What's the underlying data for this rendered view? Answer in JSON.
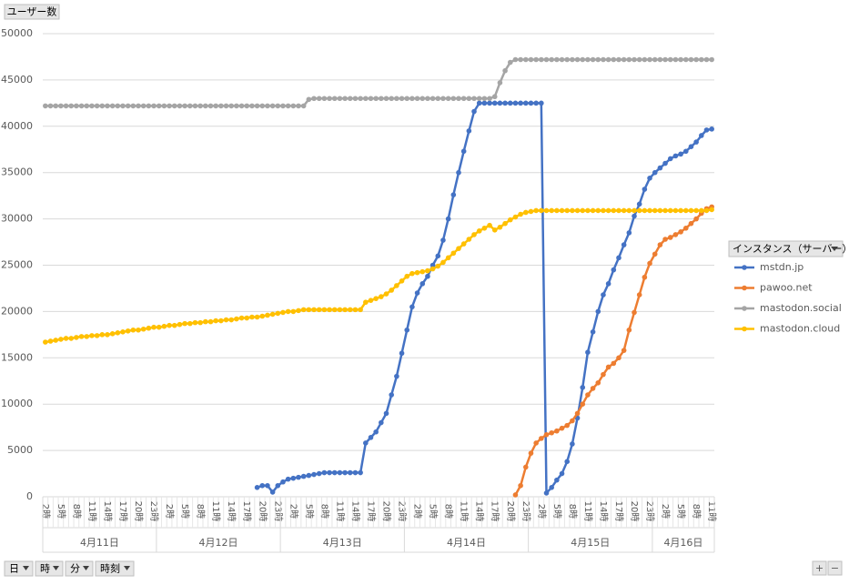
{
  "chart_data": {
    "type": "line",
    "y_field": "ユーザー数",
    "axis_fields": [
      "日",
      "時",
      "分",
      "時刻"
    ],
    "legend_title": "インスタンス（サーバー）",
    "zoom_buttons": [
      "+",
      "−"
    ],
    "legend_position": "right",
    "grid": true,
    "ylim": [
      0,
      50000
    ],
    "yticks": [
      0,
      5000,
      10000,
      15000,
      20000,
      25000,
      30000,
      35000,
      40000,
      45000,
      50000
    ],
    "days": [
      "4月11日",
      "4月12日",
      "4月13日",
      "4月14日",
      "4月15日",
      "4月16日"
    ],
    "day_hours": [
      22,
      24,
      24,
      24,
      24,
      12
    ],
    "categories": [
      "2時",
      null,
      null,
      "5時",
      null,
      null,
      "8時",
      null,
      null,
      "11時",
      null,
      null,
      "14時",
      null,
      null,
      "17時",
      null,
      null,
      "20時",
      null,
      null,
      "23時",
      null,
      null,
      "2時",
      null,
      null,
      "5時",
      null,
      null,
      "8時",
      null,
      null,
      "11時",
      null,
      null,
      "14時",
      null,
      null,
      "17時",
      null,
      null,
      "20時",
      null,
      null,
      "23時",
      null,
      null,
      "2時",
      null,
      null,
      "5時",
      null,
      null,
      "8時",
      null,
      null,
      "11時",
      null,
      null,
      "14時",
      null,
      null,
      "17時",
      null,
      null,
      "20時",
      null,
      null,
      "23時",
      null,
      null,
      "2時",
      null,
      null,
      "5時",
      null,
      null,
      "8時",
      null,
      null,
      "11時",
      null,
      null,
      "14時",
      null,
      null,
      "17時",
      null,
      null,
      "20時",
      null,
      null,
      "23時",
      null,
      null,
      "2時",
      null,
      null,
      "5時",
      null,
      null,
      "8時",
      null,
      null,
      "11時",
      null,
      null,
      "14時",
      null,
      null,
      "17時",
      null,
      null,
      "20時",
      null,
      null,
      "23時",
      null,
      null,
      "2時",
      null,
      null,
      "5時",
      null,
      null,
      "8時",
      null,
      null,
      "11時"
    ],
    "series": [
      {
        "name": "mstdn.jp",
        "color": "#4472c4",
        "values": [
          null,
          null,
          null,
          null,
          null,
          null,
          null,
          null,
          null,
          null,
          null,
          null,
          null,
          null,
          null,
          null,
          null,
          null,
          null,
          null,
          null,
          null,
          null,
          null,
          null,
          null,
          null,
          null,
          null,
          null,
          null,
          null,
          null,
          null,
          null,
          null,
          null,
          null,
          null,
          null,
          null,
          1000,
          1200,
          1200,
          500,
          1200,
          1600,
          1900,
          2000,
          2100,
          2200,
          2300,
          2400,
          2500,
          2600,
          2600,
          2600,
          2600,
          2600,
          2600,
          2600,
          2600,
          5800,
          6400,
          7000,
          8000,
          9000,
          11000,
          13000,
          15500,
          18000,
          20500,
          22000,
          23000,
          23800,
          25000,
          26000,
          27700,
          30000,
          32600,
          35000,
          37300,
          39500,
          41600,
          42500,
          42500,
          42500,
          42500,
          42500,
          42500,
          42500,
          42500,
          42500,
          42500,
          42500,
          42500,
          42500,
          400,
          1000,
          1800,
          2500,
          3800,
          5700,
          8500,
          11800,
          15600,
          17800,
          20000,
          21800,
          23000,
          24500,
          25800,
          27200,
          28500,
          30300,
          31600,
          33200,
          34400,
          35000,
          35500,
          36000,
          36500,
          36800,
          37000,
          37300,
          37800,
          38300,
          39000,
          39600,
          39700
        ]
      },
      {
        "name": "pawoo.net",
        "color": "#ed7d31",
        "values": [
          null,
          null,
          null,
          null,
          null,
          null,
          null,
          null,
          null,
          null,
          null,
          null,
          null,
          null,
          null,
          null,
          null,
          null,
          null,
          null,
          null,
          null,
          null,
          null,
          null,
          null,
          null,
          null,
          null,
          null,
          null,
          null,
          null,
          null,
          null,
          null,
          null,
          null,
          null,
          null,
          null,
          null,
          null,
          null,
          null,
          null,
          null,
          null,
          null,
          null,
          null,
          null,
          null,
          null,
          null,
          null,
          null,
          null,
          null,
          null,
          null,
          null,
          null,
          null,
          null,
          null,
          null,
          null,
          null,
          null,
          null,
          null,
          null,
          null,
          null,
          null,
          null,
          null,
          null,
          null,
          null,
          null,
          null,
          null,
          null,
          null,
          null,
          null,
          null,
          null,
          null,
          200,
          1200,
          3200,
          4700,
          5800,
          6300,
          6700,
          6900,
          7100,
          7400,
          7700,
          8200,
          9000,
          10000,
          11000,
          11700,
          12300,
          13200,
          14000,
          14400,
          15000,
          15800,
          18000,
          19900,
          21800,
          23700,
          25200,
          26200,
          27200,
          27800,
          28000,
          28300,
          28600,
          29000,
          29500,
          30000,
          30600,
          31100,
          31300
        ]
      },
      {
        "name": "mastodon.social",
        "color": "#a5a5a5",
        "values": [
          42200,
          42200,
          42200,
          42200,
          42200,
          42200,
          42200,
          42200,
          42200,
          42200,
          42200,
          42200,
          42200,
          42200,
          42200,
          42200,
          42200,
          42200,
          42200,
          42200,
          42200,
          42200,
          42200,
          42200,
          42200,
          42200,
          42200,
          42200,
          42200,
          42200,
          42200,
          42200,
          42200,
          42200,
          42200,
          42200,
          42200,
          42200,
          42200,
          42200,
          42200,
          42200,
          42200,
          42200,
          42200,
          42200,
          42200,
          42200,
          42200,
          42200,
          42200,
          42900,
          43000,
          43000,
          43000,
          43000,
          43000,
          43000,
          43000,
          43000,
          43000,
          43000,
          43000,
          43000,
          43000,
          43000,
          43000,
          43000,
          43000,
          43000,
          43000,
          43000,
          43000,
          43000,
          43000,
          43000,
          43000,
          43000,
          43000,
          43000,
          43000,
          43000,
          43000,
          43000,
          43000,
          43000,
          43000,
          43200,
          44700,
          46000,
          46900,
          47200,
          47200,
          47200,
          47200,
          47200,
          47200,
          47200,
          47200,
          47200,
          47200,
          47200,
          47200,
          47200,
          47200,
          47200,
          47200,
          47200,
          47200,
          47200,
          47200,
          47200,
          47200,
          47200,
          47200,
          47200,
          47200,
          47200,
          47200,
          47200,
          47200,
          47200,
          47200,
          47200,
          47200,
          47200,
          47200,
          47200,
          47200,
          47200
        ]
      },
      {
        "name": "mastodon.cloud",
        "color": "#ffc000",
        "values": [
          16700,
          16800,
          16900,
          17000,
          17100,
          17100,
          17200,
          17300,
          17300,
          17400,
          17400,
          17500,
          17500,
          17600,
          17700,
          17800,
          17900,
          18000,
          18000,
          18100,
          18200,
          18300,
          18300,
          18400,
          18500,
          18500,
          18600,
          18700,
          18700,
          18800,
          18800,
          18900,
          18900,
          19000,
          19000,
          19100,
          19100,
          19200,
          19300,
          19300,
          19400,
          19400,
          19500,
          19600,
          19700,
          19800,
          19900,
          20000,
          20000,
          20100,
          20200,
          20200,
          20200,
          20200,
          20200,
          20200,
          20200,
          20200,
          20200,
          20200,
          20200,
          20200,
          21000,
          21200,
          21400,
          21600,
          21900,
          22300,
          22800,
          23300,
          23800,
          24100,
          24200,
          24300,
          24400,
          24600,
          24900,
          25300,
          25800,
          26300,
          26800,
          27300,
          27800,
          28300,
          28700,
          29000,
          29300,
          28800,
          29100,
          29500,
          29900,
          30200,
          30500,
          30700,
          30800,
          30900,
          30900,
          30900,
          30900,
          30900,
          30900,
          30900,
          30900,
          30900,
          30900,
          30900,
          30900,
          30900,
          30900,
          30900,
          30900,
          30900,
          30900,
          30900,
          30900,
          30900,
          30900,
          30900,
          30900,
          30900,
          30900,
          30900,
          30900,
          30900,
          30900,
          30900,
          30900,
          30900,
          30900,
          31000
        ]
      }
    ]
  }
}
